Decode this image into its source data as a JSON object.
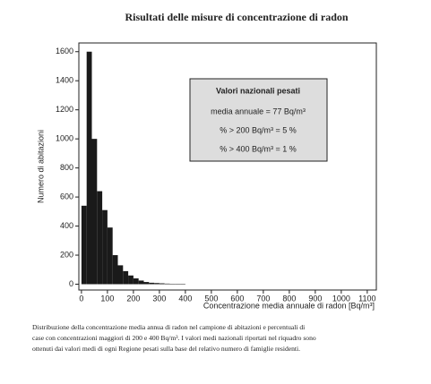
{
  "chart_data": {
    "type": "histogram",
    "title": "Risultati delle misure di concentrazione di radon",
    "xlabel": "Concentrazione media annuale di radon  [Bq/m³]",
    "ylabel": "Numero di abitazioni",
    "bins": [
      0,
      20,
      40,
      60,
      80,
      100,
      120,
      140,
      160,
      180,
      200,
      220,
      240,
      260,
      280,
      300,
      320,
      340,
      360,
      380,
      400
    ],
    "values": [
      540,
      1600,
      1000,
      640,
      510,
      390,
      200,
      130,
      90,
      60,
      40,
      25,
      15,
      10,
      8,
      6,
      4,
      3,
      2,
      2
    ],
    "color": "#1a1a1a",
    "xlim": [
      -10,
      1135
    ],
    "xticks": [
      0,
      100,
      200,
      300,
      400,
      500,
      600,
      700,
      800,
      900,
      1000,
      1100
    ],
    "ylim": [
      -40,
      1660
    ],
    "yticks": [
      0,
      200,
      400,
      600,
      800,
      1000,
      1200,
      1400,
      1600
    ],
    "annotation_box": {
      "title": "Valori nazionali pesati",
      "lines": [
        "media annuale  =  77 Bq/m³",
        "% > 200 Bq/m³  =  5 %",
        "% > 400 Bq/m³  =  1 %"
      ]
    },
    "caption": [
      "Distribuzione della concentrazione media annua di radon nel campione di abitazioni e percentuali di",
      "case con concentrazioni maggiori di 200 e 400 Bq/m³. I valori medi nazionali riportati nel riquadro sono",
      "ottenuti dai valori medi di ogni Regione pesati sulla base del relativo numero di famiglie residenti."
    ]
  }
}
